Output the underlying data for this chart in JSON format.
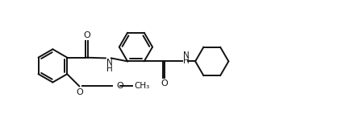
{
  "bg_color": "#ffffff",
  "line_color": "#111111",
  "line_width": 1.4,
  "figsize": [
    4.24,
    1.52
  ],
  "dpi": 100,
  "xlim": [
    0,
    10.5
  ],
  "ylim": [
    0,
    3.8
  ]
}
